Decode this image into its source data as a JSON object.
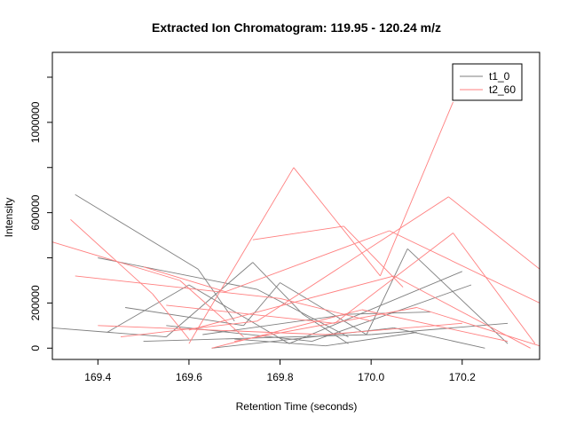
{
  "chart_data": {
    "type": "line",
    "title": "Extracted Ion Chromatogram: 119.95 - 120.24 m/z",
    "xlabel": "Retention Time (seconds)",
    "ylabel": "Intensity",
    "xlim": [
      169.3,
      170.37
    ],
    "ylim": [
      -50000,
      1310000
    ],
    "xticks": [
      169.4,
      169.6,
      169.8,
      170.0,
      170.2
    ],
    "xtick_labels": [
      "169.4",
      "169.6",
      "169.8",
      "170.0",
      "170.2"
    ],
    "yticks": [
      0,
      200000,
      600000,
      1000000
    ],
    "ytick_labels": [
      "0",
      "200000",
      "600000",
      "1000000"
    ],
    "legend": {
      "position": "top-right"
    },
    "colors": {
      "t1_0": "#7f7f7f",
      "t2_60": "#ff7f7f",
      "axis": "#000000"
    },
    "series": [
      {
        "name": "t1_0",
        "color": "#7f7f7f",
        "segments": [
          [
            [
              169.35,
              680000
            ],
            [
              169.62,
              350000
            ]
          ],
          [
            [
              169.62,
              350000
            ],
            [
              169.7,
              120000
            ]
          ],
          [
            [
              169.4,
              400000
            ],
            [
              169.75,
              260000
            ]
          ],
          [
            [
              169.75,
              260000
            ],
            [
              169.95,
              50000
            ]
          ],
          [
            [
              169.3,
              90000
            ],
            [
              169.55,
              50000
            ]
          ],
          [
            [
              169.55,
              50000
            ],
            [
              169.74,
              380000
            ]
          ],
          [
            [
              169.74,
              380000
            ],
            [
              169.85,
              150000
            ]
          ],
          [
            [
              169.85,
              150000
            ],
            [
              169.95,
              20000
            ]
          ],
          [
            [
              169.46,
              180000
            ],
            [
              169.72,
              100000
            ]
          ],
          [
            [
              169.72,
              100000
            ],
            [
              169.8,
              290000
            ]
          ],
          [
            [
              169.8,
              290000
            ],
            [
              169.99,
              60000
            ]
          ],
          [
            [
              169.99,
              60000
            ],
            [
              170.08,
              440000
            ]
          ],
          [
            [
              170.08,
              440000
            ],
            [
              170.3,
              20000
            ]
          ],
          [
            [
              169.42,
              70000
            ],
            [
              169.6,
              280000
            ]
          ],
          [
            [
              169.6,
              280000
            ],
            [
              169.82,
              20000
            ]
          ],
          [
            [
              169.82,
              20000
            ],
            [
              170.2,
              340000
            ]
          ],
          [
            [
              169.55,
              100000
            ],
            [
              169.87,
              30000
            ]
          ],
          [
            [
              169.87,
              30000
            ],
            [
              170.22,
              280000
            ]
          ],
          [
            [
              169.63,
              60000
            ],
            [
              169.95,
              150000
            ]
          ],
          [
            [
              169.95,
              150000
            ],
            [
              170.13,
              160000
            ]
          ],
          [
            [
              169.5,
              30000
            ],
            [
              170.0,
              60000
            ]
          ],
          [
            [
              170.0,
              60000
            ],
            [
              170.3,
              110000
            ]
          ],
          [
            [
              169.65,
              0
            ],
            [
              170.05,
              90000
            ]
          ],
          [
            [
              170.05,
              90000
            ],
            [
              170.25,
              0
            ]
          ],
          [
            [
              169.7,
              40000
            ],
            [
              169.9,
              10000
            ]
          ],
          [
            [
              169.9,
              10000
            ],
            [
              170.1,
              70000
            ]
          ]
        ]
      },
      {
        "name": "t2_60",
        "color": "#ff7f7f",
        "segments": [
          [
            [
              169.3,
              470000
            ],
            [
              169.58,
              300000
            ]
          ],
          [
            [
              169.58,
              300000
            ],
            [
              169.72,
              50000
            ]
          ],
          [
            [
              169.34,
              570000
            ],
            [
              169.52,
              240000
            ]
          ],
          [
            [
              169.52,
              240000
            ],
            [
              169.6,
              40000
            ]
          ],
          [
            [
              169.35,
              320000
            ],
            [
              169.8,
              220000
            ]
          ],
          [
            [
              169.8,
              220000
            ],
            [
              170.0,
              120000
            ]
          ],
          [
            [
              169.6,
              20000
            ],
            [
              169.83,
              800000
            ]
          ],
          [
            [
              169.83,
              800000
            ],
            [
              170.02,
              320000
            ]
          ],
          [
            [
              170.02,
              320000
            ],
            [
              170.18,
              1090000
            ]
          ],
          [
            [
              169.74,
              480000
            ],
            [
              169.94,
              540000
            ]
          ],
          [
            [
              169.94,
              540000
            ],
            [
              170.07,
              270000
            ]
          ],
          [
            [
              169.5,
              360000
            ],
            [
              169.68,
              250000
            ]
          ],
          [
            [
              169.68,
              250000
            ],
            [
              170.04,
              520000
            ]
          ],
          [
            [
              170.04,
              520000
            ],
            [
              170.37,
              200000
            ]
          ],
          [
            [
              169.45,
              50000
            ],
            [
              169.75,
              120000
            ]
          ],
          [
            [
              169.75,
              120000
            ],
            [
              170.17,
              670000
            ]
          ],
          [
            [
              170.17,
              670000
            ],
            [
              170.37,
              350000
            ]
          ],
          [
            [
              169.55,
              190000
            ],
            [
              169.92,
              110000
            ]
          ],
          [
            [
              169.92,
              110000
            ],
            [
              170.18,
              510000
            ]
          ],
          [
            [
              170.18,
              510000
            ],
            [
              170.36,
              20000
            ]
          ],
          [
            [
              169.4,
              100000
            ],
            [
              169.9,
              60000
            ]
          ],
          [
            [
              169.9,
              60000
            ],
            [
              170.2,
              110000
            ]
          ],
          [
            [
              169.6,
              80000
            ],
            [
              170.05,
              320000
            ]
          ],
          [
            [
              170.05,
              320000
            ],
            [
              170.35,
              0
            ]
          ],
          [
            [
              169.65,
              0
            ],
            [
              169.98,
              170000
            ]
          ],
          [
            [
              169.98,
              170000
            ],
            [
              170.3,
              30000
            ]
          ],
          [
            [
              169.7,
              30000
            ],
            [
              170.1,
              180000
            ]
          ],
          [
            [
              170.1,
              180000
            ],
            [
              170.37,
              10000
            ]
          ]
        ]
      }
    ]
  }
}
